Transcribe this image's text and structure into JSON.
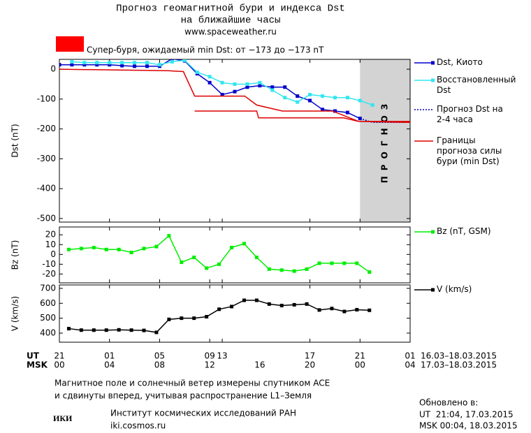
{
  "header": {
    "title_lines": [
      "Прогноз геомагнитной бури и индекса Dst",
      "на ближайшие часы"
    ],
    "site": "www.spaceweather.ru"
  },
  "chart_data": [
    {
      "type": "line",
      "y_label": "Dst (nT)",
      "xlim": [
        0,
        28
      ],
      "ylim": [
        -512,
        33
      ],
      "yticks": [
        0,
        -100,
        -200,
        -300,
        -400,
        -500
      ],
      "storm_label": "Супер-буря, ожидаемый min Dst: от −173 до −173 nT",
      "storm_color": "#ff0000",
      "forecast_band": [
        24,
        28
      ],
      "forecast_label": "ПРОГНОЗ",
      "forecast_color": "#d3d3d3",
      "series": [
        {
          "name": "Dst, Киото",
          "color": "#0000cc",
          "marker": "square",
          "x": [
            0,
            1,
            2,
            3,
            4,
            5,
            6,
            7,
            8,
            9,
            10,
            11,
            12,
            13,
            14,
            15,
            16,
            17,
            18,
            19,
            20,
            21,
            22,
            23,
            24
          ],
          "values": [
            15,
            15,
            15,
            15,
            15,
            12,
            10,
            10,
            10,
            35,
            28,
            -15,
            -45,
            -85,
            -75,
            -60,
            -55,
            -60,
            -60,
            -90,
            -105,
            -135,
            -140,
            -145,
            -165
          ]
        },
        {
          "name": "Восстановленный Dst",
          "color": "#33e6f0",
          "marker": "square",
          "x": [
            1,
            2,
            3,
            4,
            5,
            6,
            7,
            8,
            9,
            10,
            11,
            12,
            13,
            14,
            15,
            16,
            17,
            18,
            19,
            20,
            21,
            22,
            23,
            24,
            25
          ],
          "values": [
            25,
            22,
            22,
            22,
            22,
            22,
            22,
            15,
            25,
            30,
            -10,
            -25,
            -45,
            -50,
            -50,
            -45,
            -70,
            -95,
            -110,
            -85,
            -90,
            -95,
            -95,
            -105,
            -120
          ]
        },
        {
          "name": "Прогноз Dst на 2-4 часа",
          "color": "#0000aa",
          "style": "dotted",
          "x": [
            24,
            25,
            28
          ],
          "values": [
            -165,
            -178,
            -178
          ]
        },
        {
          "name": "Границы прогноза силы бури (min Dst)",
          "color": "#dd0000",
          "x": [
            0,
            8.7,
            9.9,
            10.8,
            14.8,
            15.75,
            17.8,
            21.8,
            23.9,
            28,
            null,
            10.8,
            15.75,
            15.9,
            22.7,
            23.9,
            28
          ],
          "values": [
            0,
            -5,
            -8,
            -90,
            -90,
            -120,
            -140,
            -140,
            -175,
            -178,
            null,
            -140,
            -140,
            -163,
            -163,
            -175,
            -175
          ]
        }
      ]
    },
    {
      "type": "line",
      "y_label": "Bz (nT)",
      "xlim": [
        0,
        28
      ],
      "ylim": [
        -29,
        28
      ],
      "yticks": [
        20,
        10,
        0,
        -10,
        -20
      ],
      "series": [
        {
          "name": "Bz (nT, GSM)",
          "color": "#00ee00",
          "marker": "square",
          "x": [
            0.75,
            1.75,
            2.75,
            3.75,
            4.75,
            5.75,
            6.75,
            7.75,
            8.75,
            9.75,
            10.75,
            11.75,
            12.75,
            13.75,
            14.75,
            15.75,
            16.75,
            17.75,
            18.75,
            19.75,
            20.75,
            21.75,
            22.75,
            23.75,
            24.75
          ],
          "values": [
            5,
            6,
            7,
            5,
            5,
            2,
            6,
            8,
            19,
            -8,
            -3,
            -14,
            -10,
            7,
            11,
            -3,
            -15,
            -16,
            -17,
            -15,
            -9,
            -9,
            -9,
            -9,
            -18
          ]
        }
      ]
    },
    {
      "type": "line",
      "y_label": "V (km/s)",
      "xlim": [
        0,
        28
      ],
      "ylim": [
        339,
        723
      ],
      "yticks": [
        700,
        600,
        500,
        400
      ],
      "x_label": "UT",
      "x2_label": "MSK",
      "xticks": [
        {
          "value": 0,
          "label": "21"
        },
        {
          "value": 4,
          "label": "01"
        },
        {
          "value": 8,
          "label": "05"
        },
        {
          "value": 12,
          "label": "09"
        },
        13,
        {
          "value": 20,
          "label": "17"
        },
        {
          "value": 24,
          "label": "21"
        },
        {
          "value": 28,
          "label": "01"
        }
      ],
      "x2ticks": [
        {
          "value": 0,
          "label": "00"
        },
        {
          "value": 4,
          "label": "04"
        },
        {
          "value": 8,
          "label": "08"
        },
        12,
        16,
        20,
        {
          "value": 24,
          "label": "00"
        },
        {
          "value": 28,
          "label": "04"
        }
      ],
      "x_range_label": "16.03–18.03.2015",
      "x2_range_label": "17.03–18.03.2015",
      "series": [
        {
          "name": "V (km/s)",
          "color": "#000000",
          "marker": "square",
          "x": [
            0.75,
            1.75,
            2.75,
            3.75,
            4.75,
            5.75,
            6.75,
            7.75,
            8.75,
            9.75,
            10.75,
            11.75,
            12.75,
            13.75,
            14.75,
            15.75,
            16.75,
            17.75,
            18.75,
            19.75,
            20.75,
            21.75,
            22.75,
            23.75,
            24.75
          ],
          "values": [
            430,
            420,
            420,
            420,
            422,
            420,
            418,
            405,
            492,
            500,
            500,
            510,
            560,
            578,
            620,
            620,
            595,
            585,
            590,
            595,
            555,
            565,
            545,
            557,
            553
          ]
        }
      ]
    }
  ],
  "footer": {
    "note_lines": [
      "Магнитное поле и солнечный ветер измерены спутником ACE",
      "и сдвинуты вперед, учитывая распространение L1–Земля"
    ],
    "updated_label": "Обновлено в:",
    "updated_ut": "UT  21:04, 17.03.2015",
    "updated_msk": "MSK 00:04, 18.03.2015",
    "logo": "ИКИ",
    "institute": "Институт космических исследований РАН",
    "institute_url": "iki.cosmos.ru"
  }
}
